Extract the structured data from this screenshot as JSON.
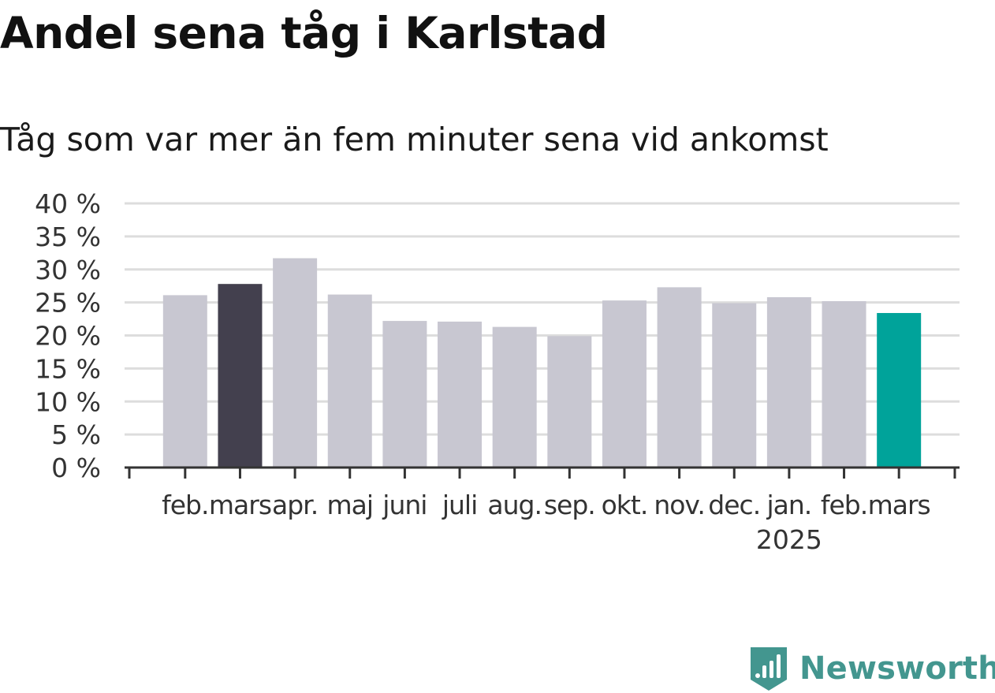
{
  "title": "Andel sena tåg i Karlstad",
  "subtitle": "Tåg som var mer än fem minuter sena vid ankomst",
  "brand": {
    "name": "Newsworthy",
    "icon": "newsworthy-logo-icon",
    "color": "#43968f"
  },
  "colors": {
    "default_bar": "#c8c7d1",
    "highlight_first": "#43404e",
    "highlight_last": "#00a39a",
    "grid": "#dddddd",
    "axis": "#333333"
  },
  "chart_data": {
    "type": "bar",
    "title": "Andel sena tåg i Karlstad",
    "subtitle": "Tåg som var mer än fem minuter sena vid ankomst",
    "categories": [
      "feb.",
      "mars",
      "apr.",
      "maj",
      "juni",
      "juli",
      "aug.",
      "sep.",
      "okt.",
      "nov.",
      "dec.",
      "jan.",
      "feb.",
      "mars"
    ],
    "year_labels": [
      "",
      "",
      "",
      "",
      "",
      "",
      "",
      "",
      "",
      "",
      "",
      "2025",
      "",
      ""
    ],
    "values": [
      26.1,
      27.8,
      31.7,
      26.2,
      22.2,
      22.1,
      21.3,
      19.9,
      25.3,
      27.3,
      24.9,
      25.8,
      25.2,
      23.4
    ],
    "bar_colors": [
      "#c8c7d1",
      "#43404e",
      "#c8c7d1",
      "#c8c7d1",
      "#c8c7d1",
      "#c8c7d1",
      "#c8c7d1",
      "#c8c7d1",
      "#c8c7d1",
      "#c8c7d1",
      "#c8c7d1",
      "#c8c7d1",
      "#c8c7d1",
      "#00a39a"
    ],
    "y_ticks": [
      "0 %",
      "5 %",
      "10 %",
      "15 %",
      "20 %",
      "25 %",
      "30 %",
      "35 %",
      "40 %"
    ],
    "ylim": [
      0,
      40
    ],
    "grid": true,
    "xlabel": "",
    "ylabel": ""
  }
}
